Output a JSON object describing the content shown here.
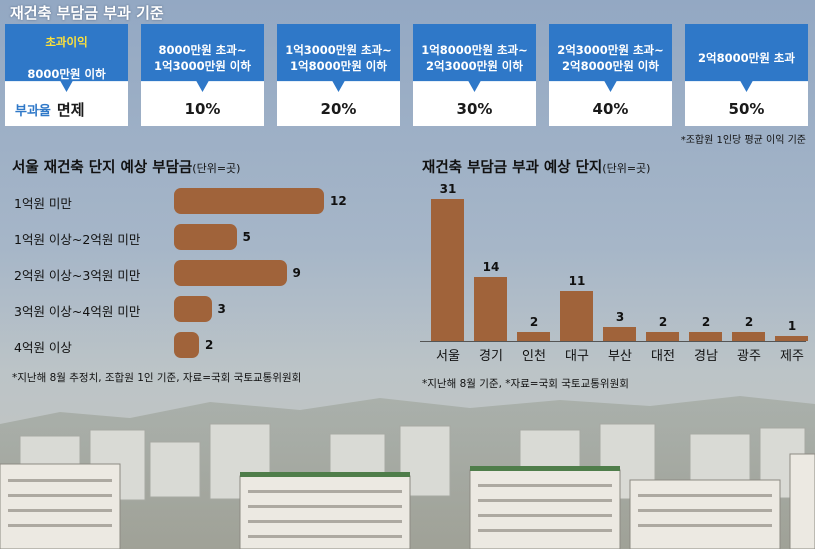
{
  "header": {
    "title": "재건축 부담금 부과 기준"
  },
  "rates": [
    {
      "head_line1": "초과이익",
      "head_line2": "8000만원 이하",
      "label": "부과율",
      "value": "면제"
    },
    {
      "head": "8000만원 초과~\n1억3000만원 이하",
      "value": "10%"
    },
    {
      "head": "1억3000만원 초과~\n1억8000만원 이하",
      "value": "20%"
    },
    {
      "head": "1억8000만원 초과~\n2억3000만원 이하",
      "value": "30%"
    },
    {
      "head": "2억3000만원 초과~\n2억8000만원 이하",
      "value": "40%"
    },
    {
      "head": "2억8000만원 초과",
      "value": "50%"
    }
  ],
  "rates_note": "*조합원 1인당 평균 이익 기준",
  "colors": {
    "bar": "#a0633a",
    "header_blue": "#2f78c8",
    "exempt_yellow": "#ffe23a"
  },
  "chart_data": [
    {
      "type": "bar",
      "orientation": "horizontal",
      "title": "서울 재건축 단지 예상 부담금",
      "unit": "(단위=곳)",
      "categories": [
        "1억원 미만",
        "1억원 이상~2억원 미만",
        "2억원 이상~3억원 미만",
        "3억원 이상~4억원 미만",
        "4억원 이상"
      ],
      "values": [
        12,
        5,
        9,
        3,
        2
      ],
      "note": "*지난해 8월 추정치, 조합원 1인 기준, 자료=국회 국토교통위원회"
    },
    {
      "type": "bar",
      "orientation": "vertical",
      "title": "재건축 부담금 부과 예상 단지",
      "unit": "(단위=곳)",
      "categories": [
        "서울",
        "경기",
        "인천",
        "대구",
        "부산",
        "대전",
        "경남",
        "광주",
        "제주"
      ],
      "values": [
        31,
        14,
        2,
        11,
        3,
        2,
        2,
        2,
        1
      ],
      "note": "*지난해 8월 기준, *자료=국회 국토교통위원회"
    }
  ]
}
